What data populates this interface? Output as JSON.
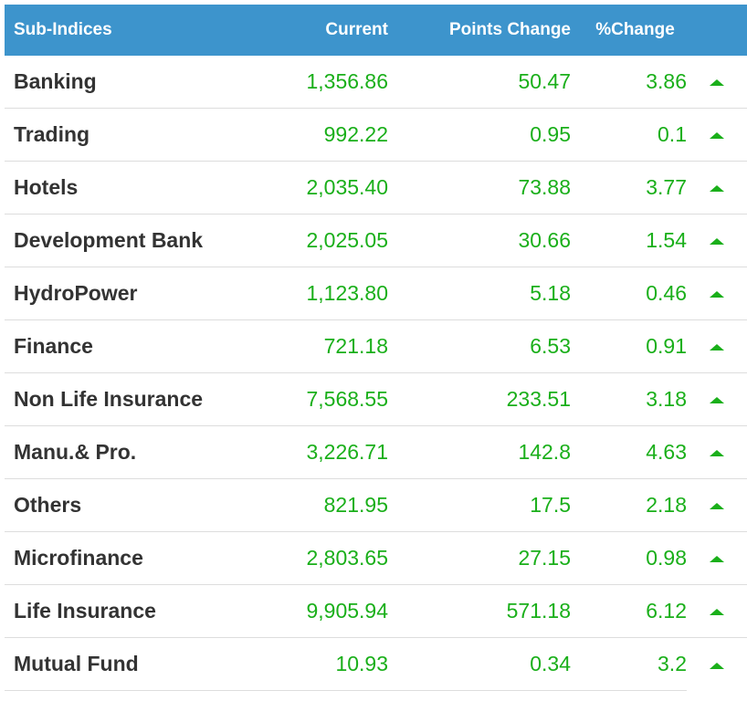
{
  "header": {
    "name": "Sub-Indices",
    "current": "Current",
    "points_change": "Points Change",
    "pct_change": "%Change"
  },
  "colors": {
    "header_bg": "#3d94cc",
    "value_green": "#1aaf1a",
    "name_text": "#333333"
  },
  "rows": [
    {
      "name": "Banking",
      "current": "1,356.86",
      "points": "50.47",
      "pct": "3.86",
      "direction": "up"
    },
    {
      "name": "Trading",
      "current": "992.22",
      "points": "0.95",
      "pct": "0.1",
      "direction": "up"
    },
    {
      "name": "Hotels",
      "current": "2,035.40",
      "points": "73.88",
      "pct": "3.77",
      "direction": "up"
    },
    {
      "name": "Development Bank",
      "current": "2,025.05",
      "points": "30.66",
      "pct": "1.54",
      "direction": "up"
    },
    {
      "name": "HydroPower",
      "current": "1,123.80",
      "points": "5.18",
      "pct": "0.46",
      "direction": "up"
    },
    {
      "name": "Finance",
      "current": "721.18",
      "points": "6.53",
      "pct": "0.91",
      "direction": "up"
    },
    {
      "name": "Non Life Insurance",
      "current": "7,568.55",
      "points": "233.51",
      "pct": "3.18",
      "direction": "up"
    },
    {
      "name": "Manu.& Pro.",
      "current": "3,226.71",
      "points": "142.8",
      "pct": "4.63",
      "direction": "up"
    },
    {
      "name": "Others",
      "current": "821.95",
      "points": "17.5",
      "pct": "2.18",
      "direction": "up"
    },
    {
      "name": "Microfinance",
      "current": "2,803.65",
      "points": "27.15",
      "pct": "0.98",
      "direction": "up"
    },
    {
      "name": "Life Insurance",
      "current": "9,905.94",
      "points": "571.18",
      "pct": "6.12",
      "direction": "up"
    },
    {
      "name": "Mutual Fund",
      "current": "10.93",
      "points": "0.34",
      "pct": "3.2",
      "direction": "up"
    }
  ]
}
